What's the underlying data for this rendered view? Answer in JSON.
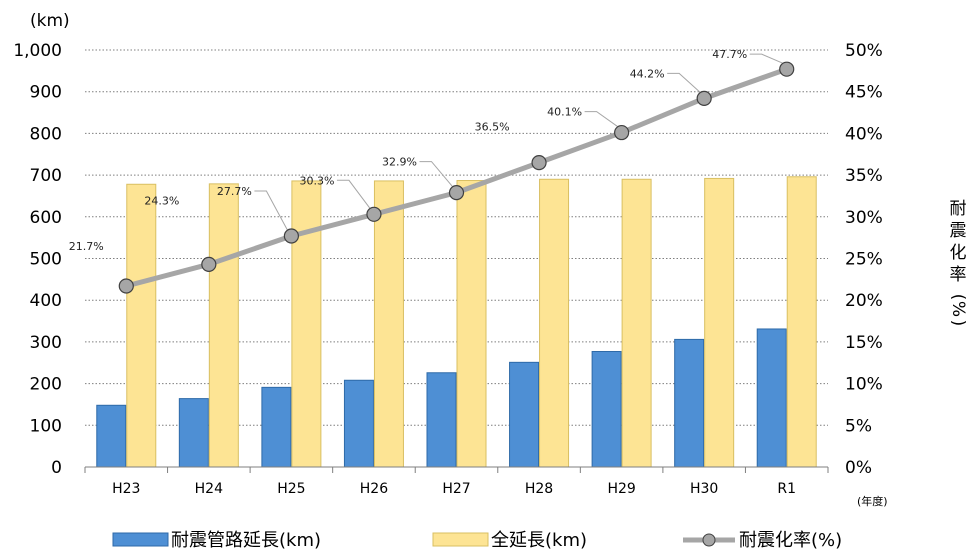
{
  "chart_data": {
    "type": "bar",
    "categories": [
      "H23",
      "H24",
      "H25",
      "H26",
      "H27",
      "H28",
      "H29",
      "H30",
      "R1"
    ],
    "series": [
      {
        "name": "耐震管路延長(km)",
        "type": "bar",
        "axis": "left",
        "color": "#4e8fd4",
        "values": [
          148,
          164,
          191,
          208,
          226,
          251,
          277,
          306,
          331
        ]
      },
      {
        "name": "全延長(km)",
        "type": "bar",
        "axis": "left",
        "color": "#fde494",
        "values": [
          678,
          679,
          686,
          686,
          687,
          690,
          690,
          692,
          696
        ]
      },
      {
        "name": "耐震化率(%)",
        "type": "line",
        "axis": "right",
        "color": "#a6a6a6",
        "values": [
          21.7,
          24.3,
          27.7,
          30.3,
          32.9,
          36.5,
          40.1,
          44.2,
          47.7
        ]
      }
    ],
    "data_labels": [
      "21.7%",
      "24.3%",
      "27.7%",
      "30.3%",
      "32.9%",
      "36.5%",
      "40.1%",
      "44.2%",
      "47.7%"
    ],
    "ylim": [
      0,
      1000
    ],
    "y2lim": [
      0,
      50
    ],
    "y_ticks": [
      "0",
      "100",
      "200",
      "300",
      "400",
      "500",
      "600",
      "700",
      "800",
      "900",
      "1,000"
    ],
    "y2_ticks": [
      "0%",
      "5%",
      "10%",
      "15%",
      "20%",
      "25%",
      "30%",
      "35%",
      "40%",
      "45%",
      "50%"
    ],
    "ylabel": "(km)",
    "y2label": "耐震化率(%)",
    "xlabel": "(年度)",
    "grid": "horizontal-dotted",
    "legend_position": "bottom"
  }
}
